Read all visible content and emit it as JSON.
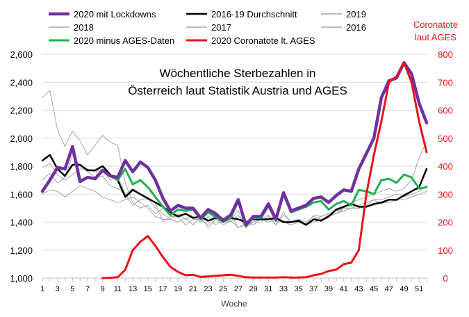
{
  "chart_data": {
    "type": "line",
    "title_line1": "Wöchentliche Sterbezahlen in",
    "title_line2": "Österreich laut Statistik Austria und AGES",
    "xlabel": "Woche",
    "ylabel_left": "",
    "ylabel_right_line1": "Coronatote",
    "ylabel_right_line2": "laut AGES",
    "y_left": {
      "min": 1000,
      "max": 2600,
      "ticks": [
        "1,000",
        "1,200",
        "1,400",
        "1,600",
        "1,800",
        "2,000",
        "2,200",
        "2,400",
        "2,600"
      ]
    },
    "y_right": {
      "min": 0,
      "max": 800,
      "ticks": [
        "0",
        "100",
        "200",
        "300",
        "400",
        "500",
        "600",
        "700",
        "800"
      ],
      "color": "#e8121a"
    },
    "x_ticks": [
      "1",
      "3",
      "5",
      "7",
      "9",
      "11",
      "13",
      "15",
      "17",
      "19",
      "21",
      "23",
      "25",
      "27",
      "29",
      "31",
      "33",
      "35",
      "37",
      "39",
      "41",
      "43",
      "45",
      "47",
      "49",
      "51"
    ],
    "grid": true,
    "legend_position": "top",
    "series": [
      {
        "name": "2020 mit Lockdowns",
        "color": "#7030a0",
        "width": 4.5,
        "axis": "left",
        "x": [
          1,
          2,
          3,
          4,
          5,
          6,
          7,
          8,
          9,
          10,
          11,
          12,
          13,
          14,
          15,
          16,
          17,
          18,
          19,
          20,
          21,
          22,
          23,
          24,
          25,
          26,
          27,
          28,
          29,
          30,
          31,
          32,
          33,
          34,
          35,
          36,
          37,
          38,
          39,
          40,
          41,
          42,
          43,
          44,
          45,
          46,
          47,
          48,
          49,
          50,
          51,
          52
        ],
        "y": [
          1620,
          1700,
          1790,
          1780,
          1940,
          1690,
          1720,
          1710,
          1770,
          1730,
          1720,
          1840,
          1760,
          1830,
          1790,
          1700,
          1570,
          1480,
          1520,
          1500,
          1500,
          1430,
          1490,
          1460,
          1410,
          1450,
          1560,
          1380,
          1440,
          1440,
          1530,
          1420,
          1610,
          1480,
          1500,
          1520,
          1570,
          1580,
          1540,
          1590,
          1630,
          1620,
          1780,
          1890,
          2000,
          2290,
          2410,
          2430,
          2540,
          2460,
          2250,
          2110
        ]
      },
      {
        "name": "2016-19 Durchschnitt",
        "color": "#000000",
        "width": 2.5,
        "axis": "left",
        "x": [
          1,
          2,
          3,
          4,
          5,
          6,
          7,
          8,
          9,
          10,
          11,
          12,
          13,
          14,
          15,
          16,
          17,
          18,
          19,
          20,
          21,
          22,
          23,
          24,
          25,
          26,
          27,
          28,
          29,
          30,
          31,
          32,
          33,
          34,
          35,
          36,
          37,
          38,
          39,
          40,
          41,
          42,
          43,
          44,
          45,
          46,
          47,
          48,
          49,
          50,
          51,
          52
        ],
        "y": [
          1840,
          1880,
          1780,
          1730,
          1810,
          1810,
          1770,
          1770,
          1800,
          1740,
          1700,
          1580,
          1630,
          1600,
          1570,
          1540,
          1510,
          1470,
          1440,
          1460,
          1430,
          1440,
          1410,
          1430,
          1420,
          1430,
          1420,
          1400,
          1420,
          1420,
          1420,
          1430,
          1400,
          1400,
          1410,
          1380,
          1420,
          1410,
          1440,
          1490,
          1510,
          1530,
          1510,
          1510,
          1530,
          1540,
          1560,
          1560,
          1590,
          1620,
          1650,
          1780
        ]
      },
      {
        "name": "2019",
        "color": "#a6a6a6",
        "width": 1,
        "axis": "left",
        "x": [
          1,
          2,
          3,
          4,
          5,
          6,
          7,
          8,
          9,
          10,
          11,
          12,
          13,
          14,
          15,
          16,
          17,
          18,
          19,
          20,
          21,
          22,
          23,
          24,
          25,
          26,
          27,
          28,
          29,
          30,
          31,
          32,
          33,
          34,
          35,
          36,
          37,
          38,
          39,
          40,
          41,
          42,
          43,
          44,
          45,
          46,
          47,
          48,
          49,
          50,
          51,
          52
        ],
        "y": [
          1790,
          1820,
          1740,
          1700,
          1740,
          1780,
          1780,
          1760,
          1780,
          1700,
          1730,
          1600,
          1520,
          1560,
          1570,
          1500,
          1460,
          1420,
          1460,
          1420,
          1440,
          1400,
          1440,
          1380,
          1420,
          1400,
          1450,
          1360,
          1400,
          1400,
          1440,
          1380,
          1450,
          1400,
          1420,
          1380,
          1450,
          1440,
          1460,
          1480,
          1480,
          1500,
          1500,
          1520,
          1560,
          1530,
          1560,
          1550,
          1600,
          1620,
          1640,
          1650
        ]
      },
      {
        "name": "2018",
        "color": "#a6a6a6",
        "width": 1,
        "axis": "left",
        "x": [
          1,
          2,
          3,
          4,
          5,
          6,
          7,
          8,
          9,
          10,
          11,
          12,
          13,
          14,
          15,
          16,
          17,
          18,
          19,
          20,
          21,
          22,
          23,
          24,
          25,
          26,
          27,
          28,
          29,
          30,
          31,
          32,
          33,
          34,
          35,
          36,
          37,
          38,
          39,
          40,
          41,
          42,
          43,
          44,
          45,
          46,
          47,
          48,
          49,
          50,
          51,
          52
        ],
        "y": [
          1600,
          1630,
          1620,
          1580,
          1620,
          1660,
          1640,
          1620,
          1580,
          1560,
          1540,
          1560,
          1580,
          1540,
          1500,
          1440,
          1420,
          1420,
          1400,
          1430,
          1380,
          1440,
          1360,
          1420,
          1380,
          1410,
          1360,
          1380,
          1400,
          1420,
          1400,
          1420,
          1400,
          1380,
          1400,
          1390,
          1420,
          1440,
          1460,
          1480,
          1500,
          1500,
          1500,
          1510,
          1520,
          1540,
          1540,
          1560,
          1560,
          1580,
          1600,
          1620
        ]
      },
      {
        "name": "2017",
        "color": "#a6a6a6",
        "width": 1,
        "axis": "left",
        "x": [
          1,
          2,
          3,
          4,
          5,
          6,
          7,
          8,
          9,
          10,
          11,
          12,
          13,
          14,
          15,
          16,
          17,
          18,
          19,
          20,
          21,
          22,
          23,
          24,
          25,
          26,
          27,
          28,
          29,
          30,
          31,
          32,
          33,
          34,
          35,
          36,
          37,
          38,
          39,
          40,
          41,
          42,
          43,
          44,
          45,
          46,
          47,
          48,
          49,
          50,
          51,
          52
        ],
        "y": [
          2290,
          2340,
          2060,
          1940,
          2050,
          1980,
          1880,
          1950,
          2020,
          1970,
          1950,
          1680,
          1540,
          1500,
          1520,
          1460,
          1500,
          1440,
          1450,
          1460,
          1440,
          1400,
          1480,
          1420,
          1400,
          1420,
          1480,
          1360,
          1430,
          1420,
          1450,
          1380,
          1470,
          1400,
          1420,
          1400,
          1440,
          1420,
          1450,
          1460,
          1480,
          1500,
          1520,
          1540,
          1560,
          1560,
          1580,
          1600,
          1580,
          1600,
          1620,
          1660
        ]
      },
      {
        "name": "2016",
        "color": "#a6a6a6",
        "width": 1,
        "axis": "left",
        "x": [
          1,
          2,
          3,
          4,
          5,
          6,
          7,
          8,
          9,
          10,
          11,
          12,
          13,
          14,
          15,
          16,
          17,
          18,
          19,
          20,
          21,
          22,
          23,
          24,
          25,
          26,
          27,
          28,
          29,
          30,
          31,
          32,
          33,
          34,
          35,
          36,
          37,
          38,
          39,
          40,
          41,
          42,
          43,
          44,
          45,
          46,
          47,
          48,
          49,
          50,
          51,
          52
        ],
        "y": [
          1700,
          1750,
          1680,
          1720,
          1880,
          1800,
          1760,
          1720,
          1730,
          1660,
          1640,
          1600,
          1640,
          1600,
          1560,
          1540,
          1400,
          1440,
          1440,
          1380,
          1420,
          1420,
          1380,
          1460,
          1430,
          1460,
          1360,
          1400,
          1380,
          1420,
          1500,
          1400,
          1410,
          1380,
          1400,
          1380,
          1400,
          1420,
          1440,
          1460,
          1500,
          1540,
          1560,
          1580,
          1600,
          1620,
          1640,
          1620,
          1640,
          1700,
          1860,
          1980
        ]
      },
      {
        "name": "2020 minus AGES-Daten",
        "color": "#20b050",
        "width": 3,
        "axis": "left",
        "x": [
          1,
          2,
          3,
          4,
          5,
          6,
          7,
          8,
          9,
          10,
          11,
          12,
          13,
          14,
          15,
          16,
          17,
          18,
          19,
          20,
          21,
          22,
          23,
          24,
          25,
          26,
          27,
          28,
          29,
          30,
          31,
          32,
          33,
          34,
          35,
          36,
          37,
          38,
          39,
          40,
          41,
          42,
          43,
          44,
          45,
          46,
          47,
          48,
          49,
          50,
          51,
          52
        ],
        "y": [
          1620,
          1700,
          1790,
          1780,
          1940,
          1690,
          1720,
          1710,
          1770,
          1730,
          1700,
          1780,
          1670,
          1700,
          1650,
          1580,
          1510,
          1450,
          1490,
          1480,
          1490,
          1420,
          1470,
          1440,
          1400,
          1430,
          1550,
          1370,
          1430,
          1430,
          1520,
          1410,
          1600,
          1470,
          1490,
          1510,
          1540,
          1550,
          1490,
          1530,
          1550,
          1520,
          1630,
          1620,
          1600,
          1700,
          1710,
          1680,
          1740,
          1720,
          1640,
          1650
        ]
      },
      {
        "name": "2020 Coronatote lt. AGES",
        "color": "#e8121a",
        "width": 3,
        "axis": "right",
        "x": [
          9,
          10,
          11,
          12,
          13,
          14,
          15,
          16,
          17,
          18,
          19,
          20,
          21,
          22,
          23,
          24,
          25,
          26,
          27,
          28,
          29,
          30,
          31,
          32,
          33,
          34,
          35,
          36,
          37,
          38,
          39,
          40,
          41,
          42,
          43,
          44,
          45,
          46,
          47,
          48,
          49,
          50,
          51,
          52
        ],
        "y": [
          0,
          1,
          3,
          30,
          100,
          130,
          150,
          115,
          75,
          40,
          22,
          10,
          12,
          4,
          6,
          8,
          10,
          12,
          8,
          3,
          2,
          2,
          2,
          2,
          3,
          2,
          2,
          3,
          10,
          15,
          25,
          30,
          50,
          55,
          100,
          300,
          440,
          560,
          700,
          720,
          770,
          700,
          560,
          450
        ]
      }
    ]
  }
}
